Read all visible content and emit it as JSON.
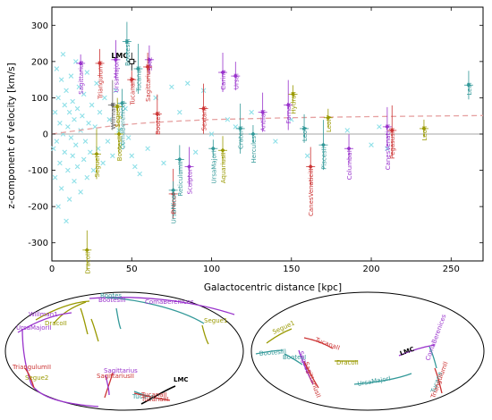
{
  "chart_data": [
    {
      "type": "scatter",
      "xlabel": "Galactocentric distance [kpc]",
      "ylabel": "z-component of velocity [km/s]",
      "xlim": [
        0,
        270
      ],
      "ylim": [
        -350,
        350
      ],
      "xticks": [
        0,
        50,
        100,
        150,
        200,
        250
      ],
      "yticks": [
        -300,
        -200,
        -100,
        0,
        100,
        200,
        300
      ],
      "grid": false,
      "reference_lines": [
        {
          "type": "horizontal",
          "y": 0,
          "color": "#888888"
        }
      ],
      "trend_curve": {
        "style": "dashed",
        "color": "#e6a0a0",
        "points": [
          [
            0,
            0
          ],
          [
            20,
            12
          ],
          [
            40,
            24
          ],
          [
            60,
            31
          ],
          [
            80,
            36
          ],
          [
            100,
            40
          ],
          [
            150,
            45
          ],
          [
            200,
            48
          ],
          [
            270,
            51
          ]
        ]
      },
      "background_stars": {
        "color": "#8fe0e8",
        "marker": "x",
        "points": [
          [
            1,
            -40
          ],
          [
            2,
            60
          ],
          [
            2,
            -120
          ],
          [
            3,
            180
          ],
          [
            3,
            -20
          ],
          [
            4,
            100
          ],
          [
            4,
            -200
          ],
          [
            5,
            30
          ],
          [
            5,
            -80
          ],
          [
            6,
            150
          ],
          [
            6,
            -150
          ],
          [
            7,
            0
          ],
          [
            7,
            220
          ],
          [
            8,
            -50
          ],
          [
            8,
            80
          ],
          [
            9,
            -240
          ],
          [
            9,
            120
          ],
          [
            10,
            20
          ],
          [
            10,
            -100
          ],
          [
            11,
            60
          ],
          [
            11,
            -180
          ],
          [
            12,
            160
          ],
          [
            12,
            -10
          ],
          [
            13,
            -60
          ],
          [
            13,
            90
          ],
          [
            14,
            -130
          ],
          [
            14,
            40
          ],
          [
            15,
            200
          ],
          [
            15,
            -30
          ],
          [
            16,
            -90
          ],
          [
            16,
            70
          ],
          [
            17,
            130
          ],
          [
            18,
            -160
          ],
          [
            18,
            10
          ],
          [
            19,
            50
          ],
          [
            20,
            -70
          ],
          [
            20,
            110
          ],
          [
            21,
            -20
          ],
          [
            22,
            170
          ],
          [
            22,
            -120
          ],
          [
            23,
            30
          ],
          [
            24,
            -50
          ],
          [
            25,
            80
          ],
          [
            26,
            -100
          ],
          [
            27,
            20
          ],
          [
            28,
            140
          ],
          [
            29,
            -40
          ],
          [
            30,
            60
          ],
          [
            32,
            -80
          ],
          [
            33,
            100
          ],
          [
            35,
            -20
          ],
          [
            36,
            40
          ],
          [
            38,
            -60
          ],
          [
            40,
            120
          ],
          [
            42,
            10
          ],
          [
            44,
            -30
          ],
          [
            46,
            70
          ],
          [
            48,
            -10
          ],
          [
            50,
            -60
          ],
          [
            52,
            -90
          ],
          [
            55,
            -110
          ],
          [
            60,
            -40
          ],
          [
            65,
            100
          ],
          [
            70,
            -80
          ],
          [
            75,
            130
          ],
          [
            80,
            60
          ],
          [
            85,
            140
          ],
          [
            90,
            -50
          ],
          [
            95,
            120
          ],
          [
            100,
            0
          ],
          [
            110,
            40
          ],
          [
            115,
            20
          ],
          [
            125,
            60
          ],
          [
            140,
            -20
          ],
          [
            150,
            40
          ],
          [
            160,
            -60
          ],
          [
            185,
            10
          ],
          [
            200,
            -30
          ],
          [
            205,
            20
          ],
          [
            210,
            -40
          ]
        ]
      },
      "galaxies": [
        {
          "name": "Sagittarius",
          "x": 18,
          "y": 195,
          "color": "#9933cc"
        },
        {
          "name": "TriangulumII",
          "x": 30,
          "y": 195,
          "color": "#cc3333"
        },
        {
          "name": "UrsaMajorII",
          "x": 40,
          "y": 205,
          "color": "#9933cc"
        },
        {
          "name": "WillmanI",
          "x": 38,
          "y": 80,
          "color": "#666666"
        },
        {
          "name": "SegueII",
          "x": 41,
          "y": 75,
          "color": "#999900"
        },
        {
          "name": "ComaBerenices",
          "x": 44,
          "y": 85,
          "color": "#339999"
        },
        {
          "name": "BootesII",
          "x": 42,
          "y": 0,
          "color": "#999900"
        },
        {
          "name": "SegueI",
          "x": 28,
          "y": -55,
          "color": "#999900"
        },
        {
          "name": "LMC",
          "x": 50,
          "y": 200,
          "color": "#000000"
        },
        {
          "name": "SMC",
          "x": 61,
          "y": 205,
          "color": "#9933cc"
        },
        {
          "name": "BootesIII",
          "x": 47,
          "y": 255,
          "color": "#339999"
        },
        {
          "name": "TucanaII",
          "x": 54,
          "y": 180,
          "color": "#339999"
        },
        {
          "name": "TucanaIV",
          "x": 50,
          "y": 150,
          "color": "#cc3333"
        },
        {
          "name": "SagittariusII",
          "x": 60,
          "y": 185,
          "color": "#cc3333"
        },
        {
          "name": "BootesI",
          "x": 66,
          "y": 55,
          "color": "#cc3333"
        },
        {
          "name": "Draco",
          "x": 76,
          "y": -165,
          "color": "#cc3333"
        },
        {
          "name": "UrsaMinor",
          "x": 76,
          "y": -155,
          "color": "#339999"
        },
        {
          "name": "ReticulumII",
          "x": 80,
          "y": -70,
          "color": "#339999"
        },
        {
          "name": "Sculptor",
          "x": 86,
          "y": -90,
          "color": "#9933cc"
        },
        {
          "name": "Sextans",
          "x": 95,
          "y": 70,
          "color": "#cc3333"
        },
        {
          "name": "UrsaMajorI",
          "x": 101,
          "y": -40,
          "color": "#339999"
        },
        {
          "name": "AquariusII",
          "x": 107,
          "y": -45,
          "color": "#999900"
        },
        {
          "name": "Carina",
          "x": 107,
          "y": 170,
          "color": "#9933cc"
        },
        {
          "name": "CraterII",
          "x": 118,
          "y": 15,
          "color": "#339999"
        },
        {
          "name": "Hercules",
          "x": 126,
          "y": 0,
          "color": "#339999"
        },
        {
          "name": "UrsaI",
          "x": 115,
          "y": 160,
          "color": "#9933cc"
        },
        {
          "name": "AntliaII",
          "x": 132,
          "y": 60,
          "color": "#9933cc"
        },
        {
          "name": "Fornax",
          "x": 148,
          "y": 80,
          "color": "#9933cc"
        },
        {
          "name": "HydraII",
          "x": 151,
          "y": 110,
          "color": "#999900"
        },
        {
          "name": "LeoV",
          "x": 158,
          "y": 15,
          "color": "#339999"
        },
        {
          "name": "CanesVenaticiII",
          "x": 162,
          "y": -90,
          "color": "#cc3333"
        },
        {
          "name": "PiscesII",
          "x": 170,
          "y": -30,
          "color": "#339999"
        },
        {
          "name": "LeoIV",
          "x": 173,
          "y": 45,
          "color": "#999900"
        },
        {
          "name": "ColumbaI",
          "x": 186,
          "y": -40,
          "color": "#9933cc"
        },
        {
          "name": "CanesVenaticiI",
          "x": 210,
          "y": 20,
          "color": "#9933cc"
        },
        {
          "name": "PegasusIII",
          "x": 213,
          "y": 10,
          "color": "#cc3333"
        },
        {
          "name": "LeoII",
          "x": 233,
          "y": 15,
          "color": "#999900"
        },
        {
          "name": "LeoI",
          "x": 261,
          "y": 135,
          "color": "#339999"
        },
        {
          "name": "DracoII",
          "x": 22,
          "y": -320,
          "color": "#999900"
        }
      ]
    },
    {
      "type": "sky_projection",
      "panels": [
        {
          "labels": [
            {
              "text": "Bootes",
              "color": "#339999"
            },
            {
              "text": "BootesIII",
              "color": "#9933cc"
            },
            {
              "text": "ComaBerenices",
              "color": "#9933cc"
            },
            {
              "text": "Willman1",
              "color": "#9933cc"
            },
            {
              "text": "DracoII",
              "color": "#999900"
            },
            {
              "text": "UrsaMajorII",
              "color": "#9933cc"
            },
            {
              "text": "Segue1",
              "color": "#999900"
            },
            {
              "text": "TriangulumII",
              "color": "#cc3333"
            },
            {
              "text": "Segue2",
              "color": "#999900"
            },
            {
              "text": "Sagittarius",
              "color": "#9933cc"
            },
            {
              "text": "SagittariusII",
              "color": "#cc3333"
            },
            {
              "text": "LMC",
              "color": "#000000"
            },
            {
              "text": "Tucana",
              "color": "#339999"
            },
            {
              "text": "TucanaII",
              "color": "#cc3333"
            },
            {
              "text": "TucanaIII",
              "color": "#cc3333"
            }
          ]
        },
        {
          "labels": [
            {
              "text": "Segue1",
              "color": "#999900"
            },
            {
              "text": "TucanaII",
              "color": "#cc3333"
            },
            {
              "text": "BootesIII",
              "color": "#339999"
            },
            {
              "text": "BootesI",
              "color": "#339999"
            },
            {
              "text": "Segue2",
              "color": "#9933cc"
            },
            {
              "text": "SagittariusII",
              "color": "#cc3333"
            },
            {
              "text": "DracoII",
              "color": "#999900"
            },
            {
              "text": "LMC",
              "color": "#000000"
            },
            {
              "text": "ComaBerenices",
              "color": "#9933cc"
            },
            {
              "text": "UrsaMajorI",
              "color": "#339999"
            },
            {
              "text": "Tucana",
              "color": "#339999"
            },
            {
              "text": "TriangulumII",
              "color": "#cc3333"
            }
          ]
        }
      ]
    }
  ]
}
